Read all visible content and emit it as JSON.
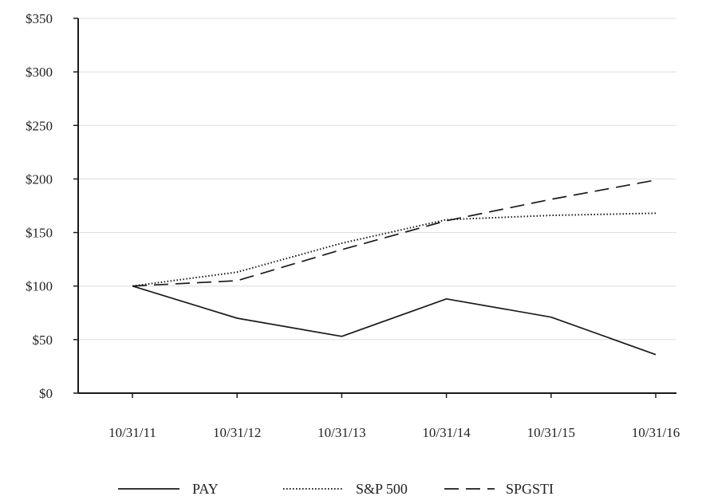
{
  "chart_data": {
    "type": "line",
    "title": "",
    "xlabel": "",
    "ylabel": "",
    "categories": [
      "10/31/11",
      "10/31/12",
      "10/31/13",
      "10/31/14",
      "10/31/15",
      "10/31/16"
    ],
    "y_ticks": [
      "$0",
      "$50",
      "$100",
      "$150",
      "$200",
      "$250",
      "$300",
      "$350"
    ],
    "ylim": [
      0,
      350
    ],
    "grid": "horizontal",
    "legend_position": "bottom",
    "series": [
      {
        "name": "PAY",
        "style": "solid",
        "color": "#1a1a1a",
        "values": [
          100,
          70,
          53,
          88,
          71,
          36
        ]
      },
      {
        "name": "S&P 500",
        "style": "dotted",
        "color": "#1a1a1a",
        "values": [
          100,
          113,
          140,
          162,
          166,
          168
        ]
      },
      {
        "name": "SPGSTI",
        "style": "dashed",
        "color": "#1a1a1a",
        "values": [
          100,
          105,
          134,
          161,
          181,
          199
        ]
      }
    ]
  }
}
